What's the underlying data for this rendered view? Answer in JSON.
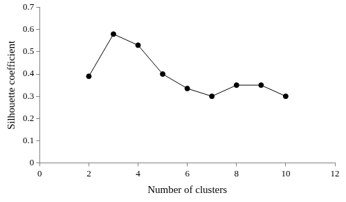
{
  "chart_data": {
    "type": "line",
    "x_label": "Number of clusters",
    "y_label": "Silhouette coefficient",
    "x": [
      2,
      3,
      4,
      5,
      6,
      7,
      8,
      9,
      10
    ],
    "values": [
      0.39,
      0.58,
      0.53,
      0.4,
      0.335,
      0.3,
      0.35,
      0.35,
      0.3
    ],
    "color": "#000000",
    "marker": "circle",
    "line_style": "solid",
    "xlim": [
      0,
      12
    ],
    "xticks": [
      0,
      2,
      4,
      6,
      8,
      10,
      12
    ],
    "ylim": [
      0,
      0.7
    ],
    "yticks": [
      0,
      0.1,
      0.2,
      0.3,
      0.4,
      0.5,
      0.6,
      0.7
    ],
    "grid": false
  }
}
